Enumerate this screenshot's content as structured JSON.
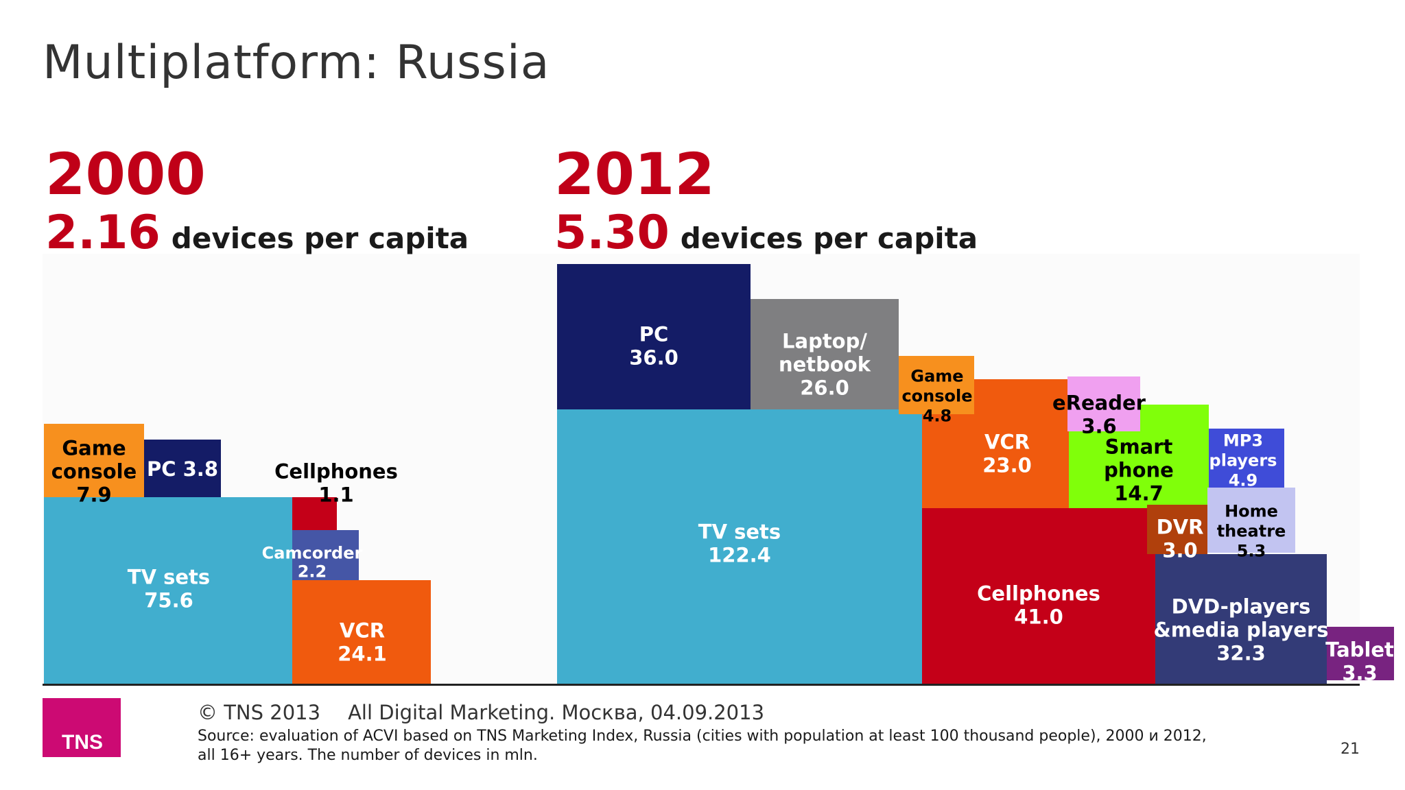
{
  "slide": {
    "title": "Multiplatform: Russia",
    "page_number": "21"
  },
  "left_panel": {
    "year": "2000",
    "devices_value": "2.16",
    "devices_text": "devices per capita"
  },
  "right_panel": {
    "year": "2012",
    "devices_value": "5.30",
    "devices_text": "devices per capita"
  },
  "footer": {
    "copyright": "© TNS 2013",
    "event": "All Digital Marketing. Москва, 04.09.2013",
    "source_line1": "Source: evaluation of ACVI based on TNS Marketing Index, Russia (cities with population at least 100 thousand people), 2000 и 2012,",
    "source_line2": "all 16+ years. The number of devices in mln.",
    "logo_text": "TNS"
  },
  "chart_data": [
    {
      "type": "mosaic",
      "year": "2000",
      "unit": "mln",
      "items": [
        {
          "label": "TV sets",
          "value": 75.6,
          "color": "#41aece",
          "text_color": "#ffffff"
        },
        {
          "label": "Game console",
          "value": 7.9,
          "color": "#f7901e",
          "text_color": "#000000"
        },
        {
          "label": "PC",
          "value": 3.8,
          "color": "#141c66",
          "text_color": "#ffffff"
        },
        {
          "label": "Cellphones",
          "value": 1.1,
          "color": "#c40018",
          "text_color": "#000000"
        },
        {
          "label": "Camcorder",
          "value": 2.2,
          "color": "#4556a6",
          "text_color": "#ffffff"
        },
        {
          "label": "VCR",
          "value": 24.1,
          "color": "#f05a0e",
          "text_color": "#ffffff"
        }
      ]
    },
    {
      "type": "mosaic",
      "year": "2012",
      "unit": "mln",
      "items": [
        {
          "label": "TV sets",
          "value": 122.4,
          "color": "#41aece",
          "text_color": "#ffffff"
        },
        {
          "label": "PC",
          "value": 36.0,
          "color": "#141c66",
          "text_color": "#ffffff"
        },
        {
          "label": "Laptop/ netbook",
          "value": 26.0,
          "color": "#7f7f81",
          "text_color": "#ffffff"
        },
        {
          "label": "Game console",
          "value": 4.8,
          "color": "#f7901e",
          "text_color": "#000000"
        },
        {
          "label": "VCR",
          "value": 23.0,
          "color": "#f05a0e",
          "text_color": "#ffffff"
        },
        {
          "label": "eReader",
          "value": 3.6,
          "color": "#f0a0f0",
          "text_color": "#000000"
        },
        {
          "label": "Smart phone",
          "value": 14.7,
          "color": "#80ff0a",
          "text_color": "#000000"
        },
        {
          "label": "MP3 players",
          "value": 4.9,
          "color": "#3f4cd8",
          "text_color": "#ffffff"
        },
        {
          "label": "Home theatre",
          "value": 5.3,
          "color": "#c2c4f1",
          "text_color": "#000000"
        },
        {
          "label": "DVR",
          "value": 3.0,
          "color": "#b0400c",
          "text_color": "#ffffff"
        },
        {
          "label": "Cellphones",
          "value": 41.0,
          "color": "#c40018",
          "text_color": "#ffffff"
        },
        {
          "label": "DVD-players &media players",
          "value": 32.3,
          "color": "#333b77",
          "text_color": "#ffffff"
        },
        {
          "label": "Tablet",
          "value": 3.3,
          "color": "#782380",
          "text_color": "#ffffff"
        }
      ]
    }
  ]
}
